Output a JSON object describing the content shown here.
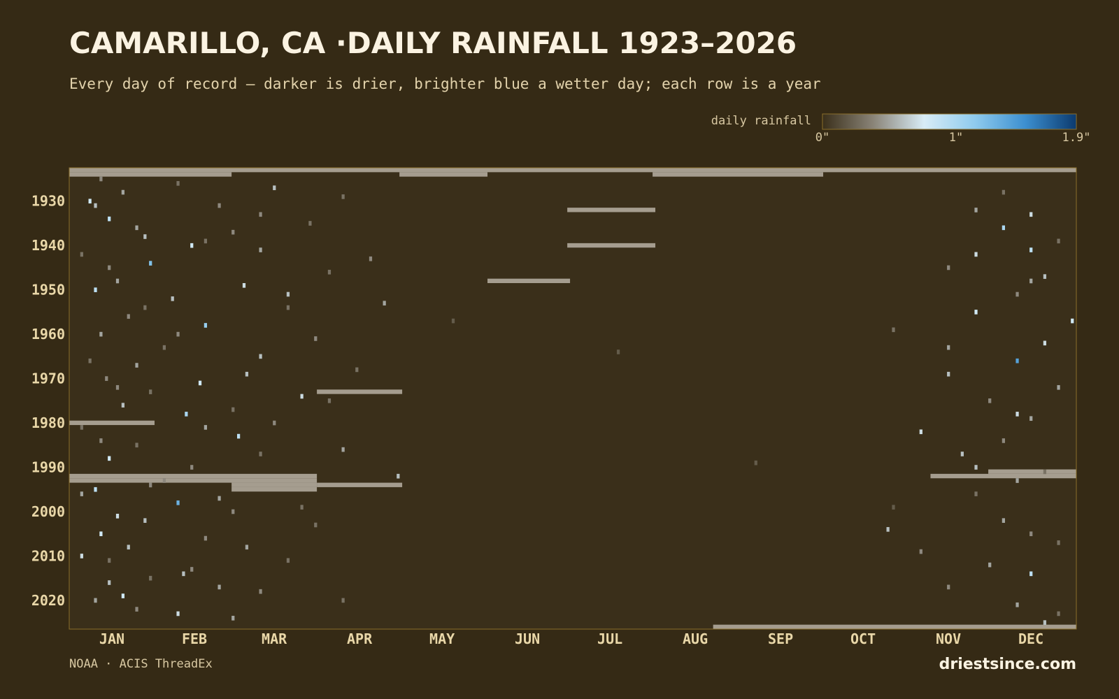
{
  "chart_data": {
    "type": "heatmap",
    "title": "CAMARILLO, CA ·DAILY RAINFALL 1923–2026",
    "subtitle": "Every day of record — darker is drier, brighter blue a wetter day; each row is a year",
    "source": "NOAA · ACIS ThreadEx",
    "brand": "driestsince.com",
    "background": "#352a15",
    "no_data_color": "#a59d8f",
    "xlim": [
      1,
      366
    ],
    "ylim": [
      1923,
      2026
    ],
    "xticks": [
      {
        "value": 16,
        "label": "JAN"
      },
      {
        "value": 46,
        "label": "FEB"
      },
      {
        "value": 75,
        "label": "MAR"
      },
      {
        "value": 106,
        "label": "APR"
      },
      {
        "value": 136,
        "label": "MAY"
      },
      {
        "value": 167,
        "label": "JUN"
      },
      {
        "value": 197,
        "label": "JUL"
      },
      {
        "value": 228,
        "label": "AUG"
      },
      {
        "value": 259,
        "label": "SEP"
      },
      {
        "value": 289,
        "label": "OCT"
      },
      {
        "value": 320,
        "label": "NOV"
      },
      {
        "value": 350,
        "label": "DEC"
      }
    ],
    "yticks": [
      1930,
      1940,
      1950,
      1960,
      1970,
      1980,
      1990,
      2000,
      2010,
      2020
    ],
    "colorscale": {
      "label": "daily rainfall",
      "min": 0,
      "max": 1.9,
      "colors": [
        "#3a2f1a",
        "#8a8478",
        "#d8ecf6",
        "#8fcbee",
        "#3c8fd0",
        "#0b3a6e"
      ],
      "ticks": [
        {
          "value": 0,
          "label": "0\""
        },
        {
          "value": 1,
          "label": "1\""
        },
        {
          "value": 1.9,
          "label": "1.9\""
        }
      ]
    },
    "no_data": [
      {
        "year": 1923,
        "start": 1,
        "end": 366
      },
      {
        "year": 1924,
        "start": 1,
        "end": 59
      },
      {
        "year": 1924,
        "start": 121,
        "end": 152
      },
      {
        "year": 1924,
        "start": 213,
        "end": 274
      },
      {
        "year": 1932,
        "start": 182,
        "end": 213
      },
      {
        "year": 1940,
        "start": 182,
        "end": 213
      },
      {
        "year": 1948,
        "start": 153,
        "end": 182
      },
      {
        "year": 1973,
        "start": 91,
        "end": 121
      },
      {
        "year": 1980,
        "start": 1,
        "end": 31
      },
      {
        "year": 1992,
        "start": 1,
        "end": 90
      },
      {
        "year": 1993,
        "start": 1,
        "end": 90
      },
      {
        "year": 1994,
        "start": 60,
        "end": 90
      },
      {
        "year": 1995,
        "start": 60,
        "end": 90
      },
      {
        "year": 1994,
        "start": 91,
        "end": 121
      },
      {
        "year": 1991,
        "start": 335,
        "end": 366
      },
      {
        "year": 1992,
        "start": 314,
        "end": 366
      },
      {
        "year": 2026,
        "start": 235,
        "end": 366
      }
    ],
    "cells": [
      {
        "year": 1925,
        "day": 12,
        "value": 0.4
      },
      {
        "year": 1926,
        "day": 40,
        "value": 0.3
      },
      {
        "year": 1927,
        "day": 75,
        "value": 0.6
      },
      {
        "year": 1928,
        "day": 20,
        "value": 0.5
      },
      {
        "year": 1929,
        "day": 100,
        "value": 0.3
      },
      {
        "year": 1930,
        "day": 8,
        "value": 0.8
      },
      {
        "year": 1931,
        "day": 55,
        "value": 0.4
      },
      {
        "year": 1932,
        "day": 330,
        "value": 0.5
      },
      {
        "year": 1933,
        "day": 350,
        "value": 0.7
      },
      {
        "year": 1934,
        "day": 15,
        "value": 0.9
      },
      {
        "year": 1935,
        "day": 88,
        "value": 0.3
      },
      {
        "year": 1936,
        "day": 340,
        "value": 1.0
      },
      {
        "year": 1937,
        "day": 60,
        "value": 0.4
      },
      {
        "year": 1938,
        "day": 28,
        "value": 0.6
      },
      {
        "year": 1939,
        "day": 360,
        "value": 0.3
      },
      {
        "year": 1940,
        "day": 45,
        "value": 0.8
      },
      {
        "year": 1941,
        "day": 70,
        "value": 0.5
      },
      {
        "year": 1941,
        "day": 350,
        "value": 0.9
      },
      {
        "year": 1942,
        "day": 5,
        "value": 0.3
      },
      {
        "year": 1943,
        "day": 110,
        "value": 0.4
      },
      {
        "year": 1944,
        "day": 30,
        "value": 1.2
      },
      {
        "year": 1945,
        "day": 320,
        "value": 0.4
      },
      {
        "year": 1946,
        "day": 95,
        "value": 0.3
      },
      {
        "year": 1947,
        "day": 355,
        "value": 0.6
      },
      {
        "year": 1948,
        "day": 18,
        "value": 0.5
      },
      {
        "year": 1949,
        "day": 64,
        "value": 0.7
      },
      {
        "year": 1950,
        "day": 10,
        "value": 0.9
      },
      {
        "year": 1951,
        "day": 345,
        "value": 0.4
      },
      {
        "year": 1952,
        "day": 38,
        "value": 0.6
      },
      {
        "year": 1953,
        "day": 115,
        "value": 0.5
      },
      {
        "year": 1954,
        "day": 80,
        "value": 0.3
      },
      {
        "year": 1955,
        "day": 330,
        "value": 0.8
      },
      {
        "year": 1956,
        "day": 22,
        "value": 0.4
      },
      {
        "year": 1957,
        "day": 140,
        "value": 0.2
      },
      {
        "year": 1958,
        "day": 50,
        "value": 1.1
      },
      {
        "year": 1959,
        "day": 300,
        "value": 0.3
      },
      {
        "year": 1960,
        "day": 12,
        "value": 0.5
      },
      {
        "year": 1961,
        "day": 90,
        "value": 0.4
      },
      {
        "year": 1962,
        "day": 355,
        "value": 0.7
      },
      {
        "year": 1963,
        "day": 35,
        "value": 0.3
      },
      {
        "year": 1964,
        "day": 200,
        "value": 0.2
      },
      {
        "year": 1965,
        "day": 70,
        "value": 0.6
      },
      {
        "year": 1966,
        "day": 345,
        "value": 1.4
      },
      {
        "year": 1967,
        "day": 25,
        "value": 0.5
      },
      {
        "year": 1968,
        "day": 105,
        "value": 0.3
      },
      {
        "year": 1969,
        "day": 320,
        "value": 0.6
      },
      {
        "year": 1970,
        "day": 14,
        "value": 0.4
      },
      {
        "year": 1971,
        "day": 48,
        "value": 0.8
      },
      {
        "year": 1972,
        "day": 360,
        "value": 0.5
      },
      {
        "year": 1973,
        "day": 30,
        "value": 0.3
      },
      {
        "year": 1974,
        "day": 85,
        "value": 0.7
      },
      {
        "year": 1975,
        "day": 335,
        "value": 0.4
      },
      {
        "year": 1976,
        "day": 20,
        "value": 0.6
      },
      {
        "year": 1977,
        "day": 60,
        "value": 0.3
      },
      {
        "year": 1978,
        "day": 43,
        "value": 1.0
      },
      {
        "year": 1979,
        "day": 350,
        "value": 0.5
      },
      {
        "year": 1980,
        "day": 75,
        "value": 0.4
      },
      {
        "year": 1981,
        "day": 5,
        "value": 0.3
      },
      {
        "year": 1982,
        "day": 310,
        "value": 0.7
      },
      {
        "year": 1983,
        "day": 62,
        "value": 0.9
      },
      {
        "year": 1984,
        "day": 340,
        "value": 0.4
      },
      {
        "year": 1985,
        "day": 25,
        "value": 0.3
      },
      {
        "year": 1986,
        "day": 100,
        "value": 0.5
      },
      {
        "year": 1987,
        "day": 325,
        "value": 0.6
      },
      {
        "year": 1988,
        "day": 15,
        "value": 0.8
      },
      {
        "year": 1989,
        "day": 250,
        "value": 0.2
      },
      {
        "year": 1990,
        "day": 45,
        "value": 0.4
      },
      {
        "year": 1991,
        "day": 355,
        "value": 0.3
      },
      {
        "year": 1992,
        "day": 120,
        "value": 0.6
      },
      {
        "year": 1993,
        "day": 345,
        "value": 0.5
      },
      {
        "year": 1994,
        "day": 30,
        "value": 0.4
      },
      {
        "year": 1995,
        "day": 10,
        "value": 0.9
      },
      {
        "year": 1996,
        "day": 330,
        "value": 0.3
      },
      {
        "year": 1997,
        "day": 55,
        "value": 0.5
      },
      {
        "year": 1998,
        "day": 40,
        "value": 1.3
      },
      {
        "year": 1999,
        "day": 300,
        "value": 0.2
      },
      {
        "year": 2000,
        "day": 60,
        "value": 0.4
      },
      {
        "year": 2001,
        "day": 18,
        "value": 0.7
      },
      {
        "year": 2002,
        "day": 340,
        "value": 0.5
      },
      {
        "year": 2003,
        "day": 90,
        "value": 0.3
      },
      {
        "year": 2004,
        "day": 298,
        "value": 0.6
      },
      {
        "year": 2005,
        "day": 12,
        "value": 0.8
      },
      {
        "year": 2006,
        "day": 50,
        "value": 0.4
      },
      {
        "year": 2007,
        "day": 360,
        "value": 0.3
      },
      {
        "year": 2008,
        "day": 22,
        "value": 0.6
      },
      {
        "year": 2009,
        "day": 310,
        "value": 0.4
      },
      {
        "year": 2010,
        "day": 5,
        "value": 0.7
      },
      {
        "year": 2011,
        "day": 80,
        "value": 0.3
      },
      {
        "year": 2012,
        "day": 335,
        "value": 0.5
      },
      {
        "year": 2013,
        "day": 45,
        "value": 0.4
      },
      {
        "year": 2014,
        "day": 350,
        "value": 0.9
      },
      {
        "year": 2015,
        "day": 30,
        "value": 0.3
      },
      {
        "year": 2016,
        "day": 15,
        "value": 0.6
      },
      {
        "year": 2017,
        "day": 55,
        "value": 0.5
      },
      {
        "year": 2018,
        "day": 70,
        "value": 0.4
      },
      {
        "year": 2019,
        "day": 20,
        "value": 0.8
      },
      {
        "year": 2020,
        "day": 100,
        "value": 0.3
      },
      {
        "year": 2021,
        "day": 345,
        "value": 0.5
      },
      {
        "year": 2022,
        "day": 25,
        "value": 0.4
      },
      {
        "year": 2023,
        "day": 40,
        "value": 0.7
      },
      {
        "year": 2024,
        "day": 60,
        "value": 0.5
      },
      {
        "year": 2025,
        "day": 355,
        "value": 0.6
      },
      {
        "year": 1928,
        "day": 340,
        "value": 0.3
      },
      {
        "year": 1931,
        "day": 10,
        "value": 0.6
      },
      {
        "year": 1933,
        "day": 70,
        "value": 0.4
      },
      {
        "year": 1936,
        "day": 25,
        "value": 0.5
      },
      {
        "year": 1939,
        "day": 50,
        "value": 0.3
      },
      {
        "year": 1942,
        "day": 330,
        "value": 0.7
      },
      {
        "year": 1945,
        "day": 15,
        "value": 0.4
      },
      {
        "year": 1948,
        "day": 350,
        "value": 0.5
      },
      {
        "year": 1951,
        "day": 80,
        "value": 0.6
      },
      {
        "year": 1954,
        "day": 28,
        "value": 0.3
      },
      {
        "year": 1957,
        "day": 365,
        "value": 0.8
      },
      {
        "year": 1960,
        "day": 40,
        "value": 0.4
      },
      {
        "year": 1963,
        "day": 320,
        "value": 0.5
      },
      {
        "year": 1966,
        "day": 8,
        "value": 0.3
      },
      {
        "year": 1969,
        "day": 65,
        "value": 0.6
      },
      {
        "year": 1972,
        "day": 18,
        "value": 0.4
      },
      {
        "year": 1975,
        "day": 95,
        "value": 0.3
      },
      {
        "year": 1978,
        "day": 345,
        "value": 0.7
      },
      {
        "year": 1981,
        "day": 50,
        "value": 0.5
      },
      {
        "year": 1984,
        "day": 12,
        "value": 0.4
      },
      {
        "year": 1987,
        "day": 70,
        "value": 0.3
      },
      {
        "year": 1990,
        "day": 330,
        "value": 0.6
      },
      {
        "year": 1993,
        "day": 35,
        "value": 0.4
      },
      {
        "year": 1996,
        "day": 5,
        "value": 0.5
      },
      {
        "year": 1999,
        "day": 85,
        "value": 0.3
      },
      {
        "year": 2002,
        "day": 28,
        "value": 0.6
      },
      {
        "year": 2005,
        "day": 350,
        "value": 0.4
      },
      {
        "year": 2008,
        "day": 65,
        "value": 0.5
      },
      {
        "year": 2011,
        "day": 15,
        "value": 0.3
      },
      {
        "year": 2014,
        "day": 42,
        "value": 0.6
      },
      {
        "year": 2017,
        "day": 320,
        "value": 0.4
      },
      {
        "year": 2020,
        "day": 10,
        "value": 0.5
      },
      {
        "year": 2023,
        "day": 360,
        "value": 0.3
      }
    ]
  }
}
